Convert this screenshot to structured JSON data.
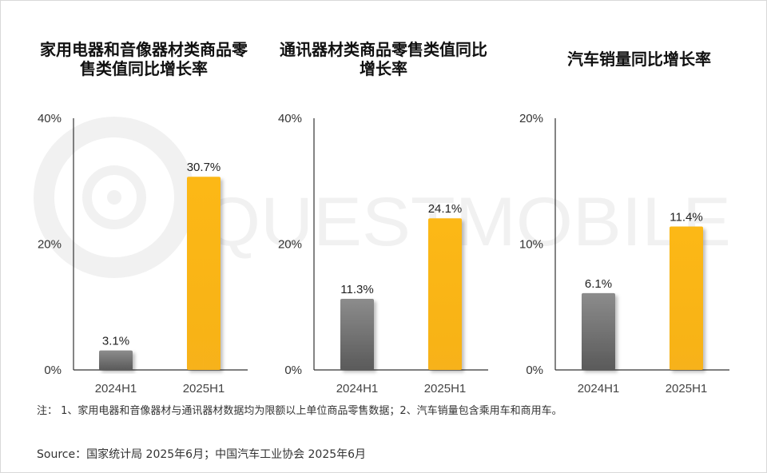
{
  "watermark_text": "QUESTMOBILE",
  "chart_data": [
    {
      "type": "bar",
      "title": "家用电器和音像器材类商品零售类值同比增长率",
      "categories": [
        "2024H1",
        "2025H1"
      ],
      "values": [
        3.1,
        30.7
      ],
      "value_labels": [
        "3.1%",
        "30.7%"
      ],
      "ylim": [
        0,
        40
      ],
      "yticks": [
        0,
        20,
        40
      ],
      "ytick_labels": [
        "0%",
        "20%",
        "40%"
      ],
      "xlabel": "",
      "ylabel": "",
      "grid": false
    },
    {
      "type": "bar",
      "title": "通讯器材类商品零售类值同比增长率",
      "categories": [
        "2024H1",
        "2025H1"
      ],
      "values": [
        11.3,
        24.1
      ],
      "value_labels": [
        "11.3%",
        "24.1%"
      ],
      "ylim": [
        0,
        40
      ],
      "yticks": [
        0,
        20,
        40
      ],
      "ytick_labels": [
        "0%",
        "20%",
        "40%"
      ],
      "xlabel": "",
      "ylabel": "",
      "grid": false
    },
    {
      "type": "bar",
      "title": "汽车销量同比增长率",
      "categories": [
        "2024H1",
        "2025H1"
      ],
      "values": [
        6.1,
        11.4
      ],
      "value_labels": [
        "6.1%",
        "11.4%"
      ],
      "ylim": [
        0,
        20
      ],
      "yticks": [
        0,
        10,
        20
      ],
      "ytick_labels": [
        "0%",
        "10%",
        "20%"
      ],
      "xlabel": "",
      "ylabel": "",
      "grid": false
    }
  ],
  "colors": {
    "bar_2024": "#8a8a8a",
    "bar_2025": "#fbb614",
    "axis": "#333333",
    "text": "#333333"
  },
  "footnote": "注：   1、家用电器和音像器材与通讯器材数据均为限额以上单位商品零售数据；2、汽车销量包含乘用车和商用车。",
  "source": "Source：国家统计局 2025年6月；中国汽车工业协会 2025年6月"
}
